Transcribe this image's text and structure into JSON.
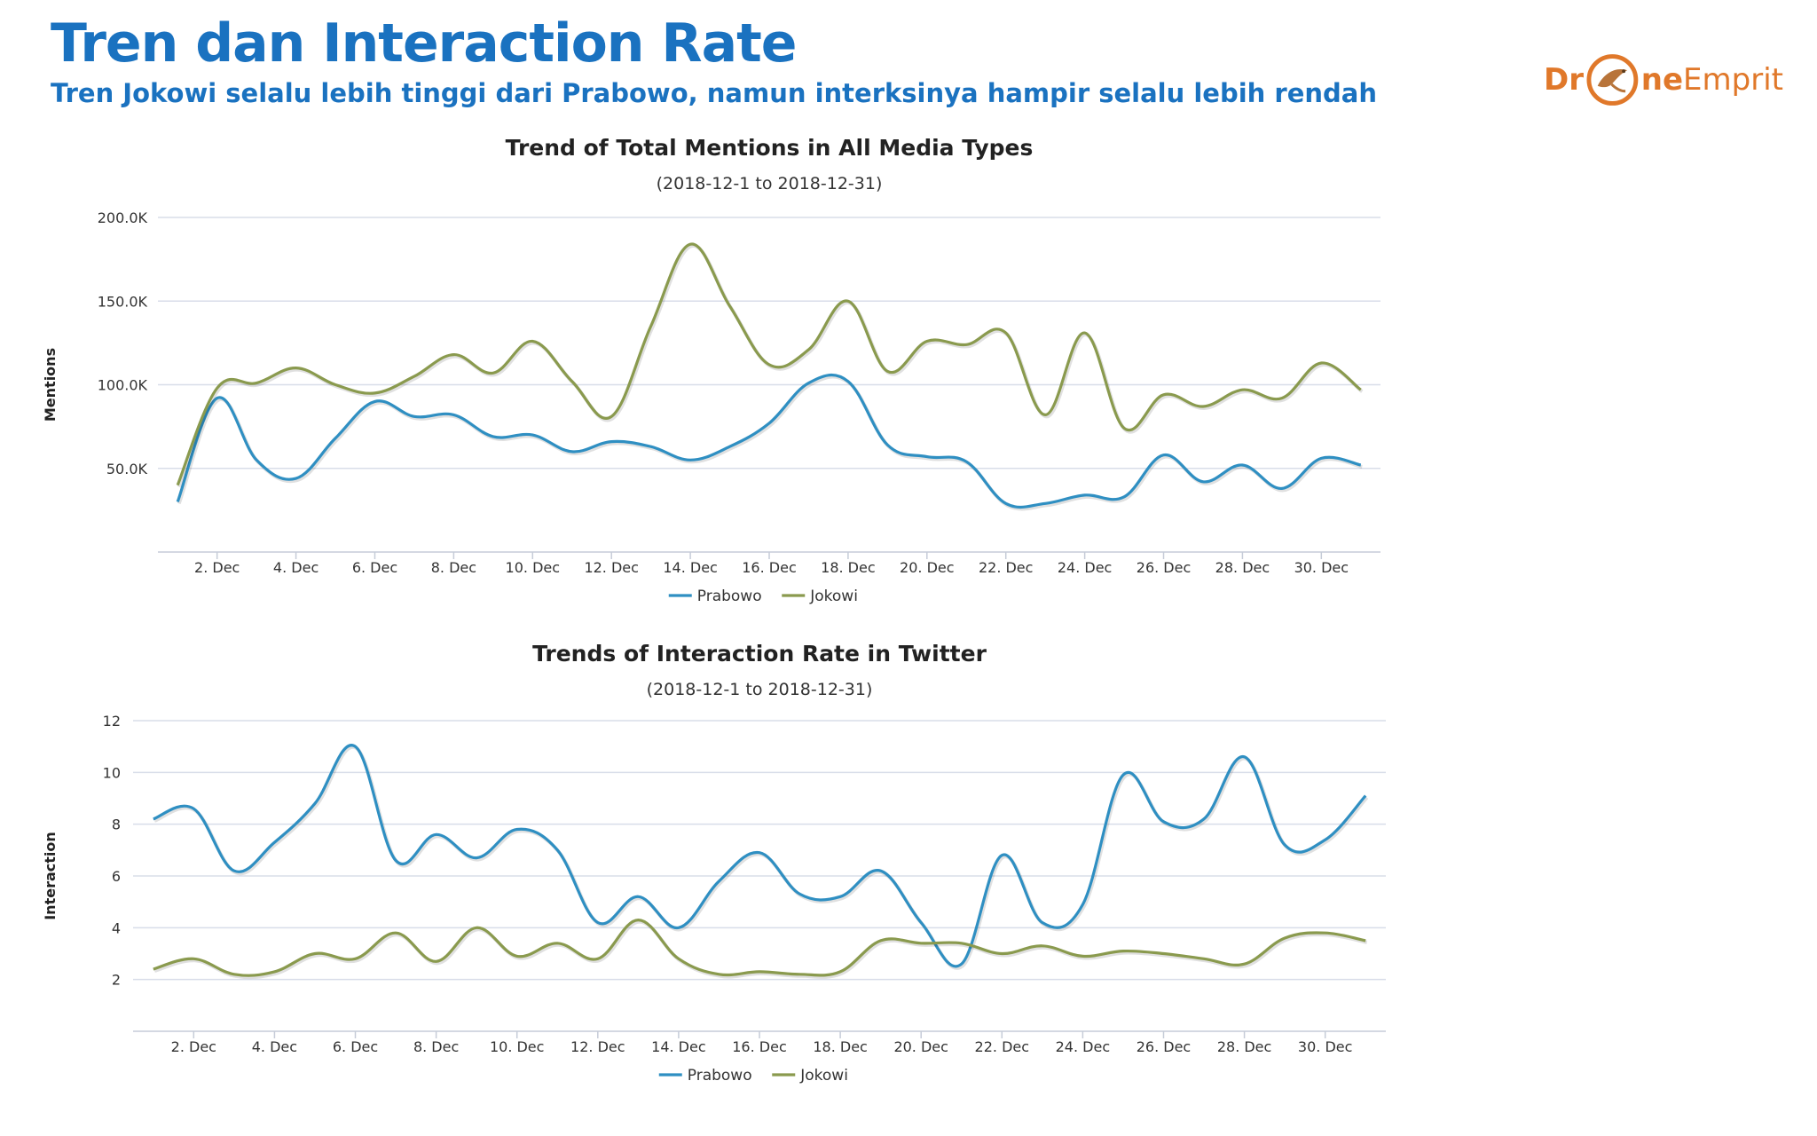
{
  "header": {
    "title": "Tren dan Interaction Rate",
    "subtitle": "Tren Jokowi selalu lebih tinggi dari Prabowo, namun interksinya hampir selalu lebih rendah"
  },
  "logo": {
    "part1": "Dr",
    "part2": "ne",
    "part3": "Emprit"
  },
  "colors": {
    "heading": "#1a72c0",
    "logo": "#e0782a",
    "prabowo": "#2f8fc2",
    "jokowi": "#8a9a4e",
    "grid": "#d8dde9"
  },
  "chart_data": [
    {
      "type": "line",
      "title": "Trend of Total Mentions in All Media Types",
      "subtitle": "(2018-12-1 to 2018-12-31)",
      "xlabel": "",
      "ylabel": "Mentions",
      "x": [
        1,
        2,
        3,
        4,
        5,
        6,
        7,
        8,
        9,
        10,
        11,
        12,
        13,
        14,
        15,
        16,
        17,
        18,
        19,
        20,
        21,
        22,
        23,
        24,
        25,
        26,
        27,
        28,
        29,
        30,
        31
      ],
      "xlim": [
        0.5,
        31.5
      ],
      "xticks": [
        2,
        4,
        6,
        8,
        10,
        12,
        14,
        16,
        18,
        20,
        22,
        24,
        26,
        28,
        30
      ],
      "xtick_labels": [
        "2. Dec",
        "4. Dec",
        "6. Dec",
        "8. Dec",
        "10. Dec",
        "12. Dec",
        "14. Dec",
        "16. Dec",
        "18. Dec",
        "20. Dec",
        "22. Dec",
        "24. Dec",
        "26. Dec",
        "28. Dec",
        "30. Dec"
      ],
      "ylim": [
        0,
        200000
      ],
      "yticks": [
        50000,
        100000,
        150000,
        200000
      ],
      "ytick_labels": [
        "50.0K",
        "100.0K",
        "150.0K",
        "200.0K"
      ],
      "grid": true,
      "legend": "bottom-center",
      "series": [
        {
          "name": "Prabowo",
          "color": "#2f8fc2",
          "values": [
            30000,
            92000,
            55000,
            44000,
            68000,
            90000,
            81000,
            82000,
            69000,
            70000,
            60000,
            66000,
            63000,
            55000,
            63000,
            77000,
            101000,
            102000,
            64000,
            57000,
            54000,
            29000,
            29000,
            34000,
            33000,
            58000,
            42000,
            52000,
            38000,
            56000,
            52000
          ]
        },
        {
          "name": "Jokowi",
          "color": "#8a9a4e",
          "values": [
            40000,
            98000,
            101000,
            110000,
            100000,
            95000,
            105000,
            118000,
            107000,
            126000,
            102000,
            81000,
            135000,
            184000,
            147000,
            112000,
            121000,
            150000,
            108000,
            126000,
            124000,
            131000,
            82000,
            131000,
            74000,
            94000,
            87000,
            97000,
            92000,
            113000,
            97000
          ]
        }
      ]
    },
    {
      "type": "line",
      "title": "Trends of Interaction Rate in Twitter",
      "subtitle": "(2018-12-1 to 2018-12-31)",
      "xlabel": "",
      "ylabel": "Interaction",
      "x": [
        1,
        2,
        3,
        4,
        5,
        6,
        7,
        8,
        9,
        10,
        11,
        12,
        13,
        14,
        15,
        16,
        17,
        18,
        19,
        20,
        21,
        22,
        23,
        24,
        25,
        26,
        27,
        28,
        29,
        30,
        31
      ],
      "xlim": [
        0.5,
        31.5
      ],
      "xticks": [
        2,
        4,
        6,
        8,
        10,
        12,
        14,
        16,
        18,
        20,
        22,
        24,
        26,
        28,
        30
      ],
      "xtick_labels": [
        "2. Dec",
        "4. Dec",
        "6. Dec",
        "8. Dec",
        "10. Dec",
        "12. Dec",
        "14. Dec",
        "16. Dec",
        "18. Dec",
        "20. Dec",
        "22. Dec",
        "24. Dec",
        "26. Dec",
        "28. Dec",
        "30. Dec"
      ],
      "ylim": [
        0,
        12
      ],
      "yticks": [
        2,
        4,
        6,
        8,
        10,
        12
      ],
      "ytick_labels": [
        "2",
        "4",
        "6",
        "8",
        "10",
        "12"
      ],
      "grid": true,
      "legend": "bottom-center",
      "series": [
        {
          "name": "Prabowo",
          "color": "#2f8fc2",
          "values": [
            8.2,
            8.6,
            6.2,
            7.3,
            8.8,
            11.0,
            6.6,
            7.6,
            6.7,
            7.8,
            7.0,
            4.2,
            5.2,
            4.0,
            5.8,
            6.9,
            5.3,
            5.2,
            6.2,
            4.2,
            2.6,
            6.8,
            4.2,
            4.9,
            9.9,
            8.1,
            8.2,
            10.6,
            7.2,
            7.4,
            9.1
          ]
        },
        {
          "name": "Jokowi",
          "color": "#8a9a4e",
          "values": [
            2.4,
            2.8,
            2.2,
            2.3,
            3.0,
            2.8,
            3.8,
            2.7,
            4.0,
            2.9,
            3.4,
            2.8,
            4.3,
            2.8,
            2.2,
            2.3,
            2.2,
            2.3,
            3.5,
            3.4,
            3.4,
            3.0,
            3.3,
            2.9,
            3.1,
            3.0,
            2.8,
            2.6,
            3.6,
            3.8,
            3.5
          ]
        }
      ]
    }
  ]
}
